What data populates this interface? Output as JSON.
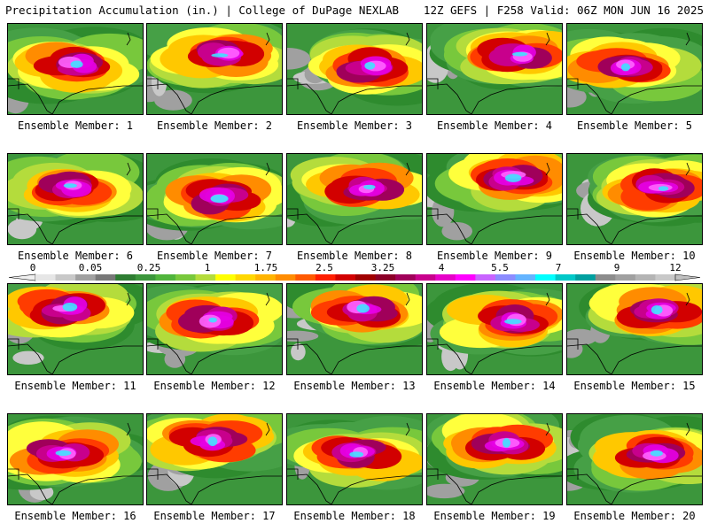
{
  "header": {
    "title_left": "Precipitation Accumulation (in.) | College of DuPage NEXLAB",
    "title_right": "12Z GEFS | F258 Valid: 06Z MON JUN 16 2025"
  },
  "members": [
    {
      "label": "Ensemble Member: 1"
    },
    {
      "label": "Ensemble Member: 2"
    },
    {
      "label": "Ensemble Member: 3"
    },
    {
      "label": "Ensemble Member: 4"
    },
    {
      "label": "Ensemble Member: 5"
    },
    {
      "label": "Ensemble Member: 6"
    },
    {
      "label": "Ensemble Member: 7"
    },
    {
      "label": "Ensemble Member: 8"
    },
    {
      "label": "Ensemble Member: 9"
    },
    {
      "label": "Ensemble Member: 10"
    },
    {
      "label": "Ensemble Member: 11"
    },
    {
      "label": "Ensemble Member: 12"
    },
    {
      "label": "Ensemble Member: 13"
    },
    {
      "label": "Ensemble Member: 14"
    },
    {
      "label": "Ensemble Member: 15"
    },
    {
      "label": "Ensemble Member: 16"
    },
    {
      "label": "Ensemble Member: 17"
    },
    {
      "label": "Ensemble Member: 18"
    },
    {
      "label": "Ensemble Member: 19"
    },
    {
      "label": "Ensemble Member: 20"
    }
  ],
  "colorbar": {
    "tick_labels": [
      "0",
      "0.05",
      "0.25",
      "1",
      "1.75",
      "2.5",
      "3.25",
      "4",
      "5.5",
      "7",
      "9",
      "12"
    ],
    "colors": [
      "#e6e6e6",
      "#c8c8c8",
      "#a0a0a0",
      "#787878",
      "#2e7d32",
      "#3c963c",
      "#50b43c",
      "#78c83c",
      "#b4dc3c",
      "#ffff00",
      "#ffd700",
      "#ffb400",
      "#ff8c00",
      "#ff5a00",
      "#ff1e00",
      "#d20000",
      "#a00000",
      "#8c0028",
      "#a0005a",
      "#c8008c",
      "#e600c8",
      "#ff00ff",
      "#c864ff",
      "#8c8cff",
      "#64b4ff",
      "#00ffff",
      "#00c8c8",
      "#00a0a0",
      "#8c8c8c",
      "#a0a0a0",
      "#b4b4b4",
      "#c8c8c8"
    ]
  }
}
